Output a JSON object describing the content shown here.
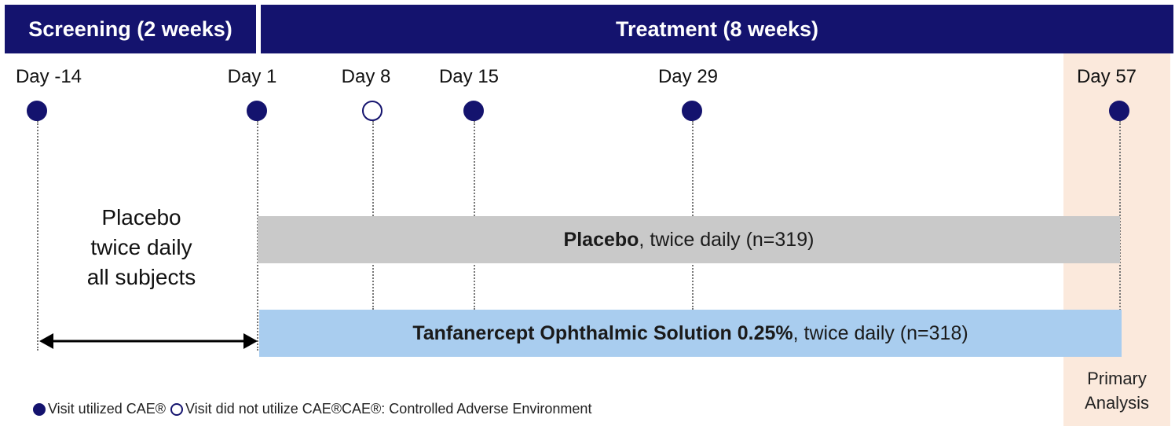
{
  "header": {
    "screening_label": "Screening (2 weeks)",
    "treatment_label": "Treatment (8 weeks)"
  },
  "timeline": {
    "visits": [
      {
        "label": "Day -14",
        "utilized": true
      },
      {
        "label": "Day 1",
        "utilized": true
      },
      {
        "label": "Day 8",
        "utilized": false
      },
      {
        "label": "Day 15",
        "utilized": true
      },
      {
        "label": "Day 29",
        "utilized": true
      },
      {
        "label": "Day 57",
        "utilized": true
      }
    ]
  },
  "screening_arm": {
    "lines": [
      "Placebo",
      "twice daily",
      "all subjects"
    ]
  },
  "arms": {
    "placebo": {
      "bold": "Placebo",
      "rest": ", twice daily (n=319)",
      "color": "#c9c9c9"
    },
    "treatment": {
      "bold": "Tanfanercept Ophthalmic Solution 0.25%",
      "rest": ", twice daily (n=318)",
      "color": "#a9cdef"
    }
  },
  "primary_analysis": {
    "lines": [
      "Primary",
      "Analysis"
    ],
    "color": "#fbe9dc"
  },
  "legend": {
    "utilized": "Visit utilized CAE®",
    "not_utilized": "Visit did not utilize CAE®",
    "definition": "CAE®: Controlled Adverse Environment"
  },
  "colors": {
    "header": "#14136e",
    "dot": "#14136e"
  }
}
